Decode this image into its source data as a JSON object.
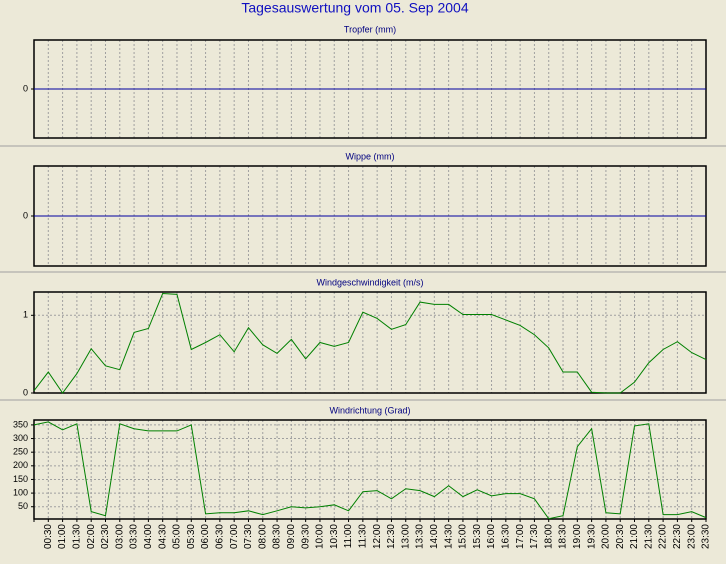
{
  "title": "Tagesauswertung vom 05. Sep 2004",
  "chart_data": [
    {
      "type": "line",
      "title": "Tropfer (mm)",
      "ylim": [
        -1,
        1
      ],
      "yticks": [
        0
      ],
      "grid": true,
      "series": [
        {
          "color": "#0000a0",
          "values": [
            0,
            0,
            0,
            0,
            0,
            0,
            0,
            0,
            0,
            0,
            0,
            0,
            0,
            0,
            0,
            0,
            0,
            0,
            0,
            0,
            0,
            0,
            0,
            0,
            0,
            0,
            0,
            0,
            0,
            0,
            0,
            0,
            0,
            0,
            0,
            0,
            0,
            0,
            0,
            0,
            0,
            0,
            0,
            0,
            0,
            0,
            0,
            0
          ]
        }
      ]
    },
    {
      "type": "line",
      "title": "Wippe (mm)",
      "ylim": [
        -1,
        1
      ],
      "yticks": [
        0
      ],
      "grid": true,
      "series": [
        {
          "color": "#0000a0",
          "values": [
            0,
            0,
            0,
            0,
            0,
            0,
            0,
            0,
            0,
            0,
            0,
            0,
            0,
            0,
            0,
            0,
            0,
            0,
            0,
            0,
            0,
            0,
            0,
            0,
            0,
            0,
            0,
            0,
            0,
            0,
            0,
            0,
            0,
            0,
            0,
            0,
            0,
            0,
            0,
            0,
            0,
            0,
            0,
            0,
            0,
            0,
            0,
            0
          ]
        }
      ]
    },
    {
      "type": "line",
      "title": "Windgeschwindigkeit (m/s)",
      "ylim": [
        0,
        1.3
      ],
      "yticks": [
        0,
        1
      ],
      "grid": true,
      "series": [
        {
          "color": "#008000",
          "values": [
            0.03,
            0.27,
            0,
            0.25,
            0.57,
            0.35,
            0.3,
            0.78,
            0.83,
            1.28,
            1.27,
            0.56,
            0.65,
            0.75,
            0.53,
            0.84,
            0.62,
            0.51,
            0.69,
            0.44,
            0.65,
            0.6,
            0.65,
            1.04,
            0.96,
            0.82,
            0.88,
            1.17,
            1.14,
            1.14,
            1.01,
            1.01,
            1.01,
            0.94,
            0.87,
            0.75,
            0.58,
            0.27,
            0.27,
            0.01,
            0,
            0,
            0.14,
            0.39,
            0.56,
            0.66,
            0.52,
            0.43
          ]
        }
      ]
    },
    {
      "type": "line",
      "title": "Windrichtung (Grad)",
      "ylim": [
        5,
        368
      ],
      "yticks": [
        50,
        100,
        150,
        200,
        250,
        300,
        350
      ],
      "grid": true,
      "categories": [
        null,
        "00:30",
        "01:00",
        "01:30",
        "02:00",
        "02:30",
        "03:00",
        "03:30",
        "04:00",
        "04:30",
        "05:00",
        "05:30",
        "06:00",
        "06:30",
        "07:00",
        "07:30",
        "08:00",
        "08:30",
        "09:00",
        "09:30",
        "10:00",
        "10:30",
        "11:00",
        "11:30",
        "12:00",
        "12:30",
        "13:00",
        "13:30",
        "14:00",
        "14:30",
        "15:00",
        "15:30",
        "16:00",
        "16:30",
        "17:00",
        "17:30",
        "18:00",
        "18:30",
        "19:00",
        "19:30",
        "20:00",
        "20:30",
        "21:00",
        "21:30",
        "22:00",
        "22:30",
        "23:00",
        "23:30"
      ],
      "series": [
        {
          "color": "#008000",
          "values": [
            350,
            361,
            332,
            354,
            32,
            17,
            354,
            336,
            328,
            328,
            328,
            350,
            24,
            28,
            28,
            35,
            21,
            35,
            50,
            46,
            50,
            57,
            35,
            105,
            109,
            79,
            116,
            109,
            87,
            127,
            87,
            112,
            90,
            98,
            98,
            79,
            6,
            17,
            270,
            336,
            28,
            24,
            346,
            354,
            21,
            21,
            32,
            10
          ]
        }
      ]
    }
  ]
}
